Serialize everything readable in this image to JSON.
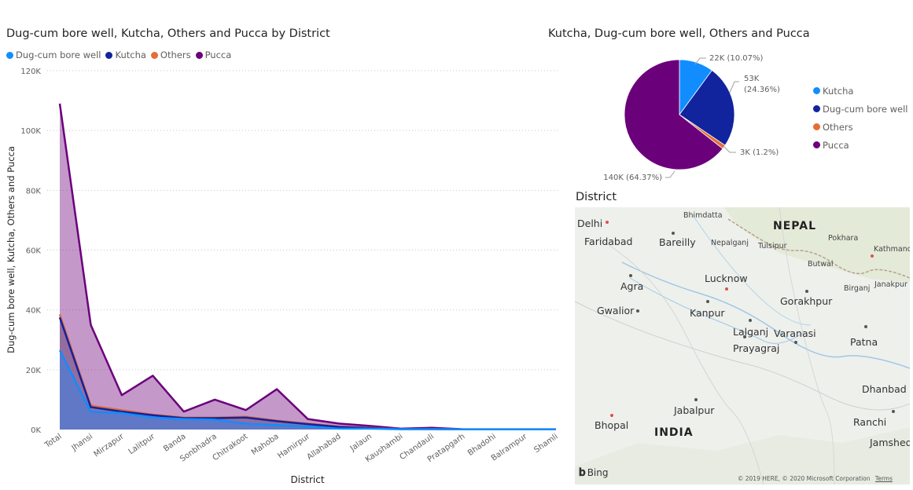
{
  "area_visual": {
    "title": "Dug-cum bore well, Kutcha, Others and Pucca by District",
    "legend": [
      {
        "label": "Dug-cum bore well",
        "color": "#118DFF"
      },
      {
        "label": "Kutcha",
        "color": "#12239E"
      },
      {
        "label": "Others",
        "color": "#E66C37"
      },
      {
        "label": "Pucca",
        "color": "#6B007B"
      }
    ]
  },
  "pie_visual": {
    "title": "Kutcha, Dug-cum bore well, Others and Pucca",
    "legend": [
      {
        "label": "Kutcha",
        "color": "#118DFF"
      },
      {
        "label": "Dug-cum bore well",
        "color": "#12239E"
      },
      {
        "label": "Others",
        "color": "#E66C37"
      },
      {
        "label": "Pucca",
        "color": "#6B007B"
      }
    ]
  },
  "map_visual": {
    "title": "District",
    "labels": {
      "delhi": "Delhi",
      "faridabad": "Faridabad",
      "bareilly": "Bareilly",
      "bhimdatta": "Bhimdatta",
      "nepal": "NEPAL",
      "pokhara": "Pokhara",
      "kathmandu": "Kathmand",
      "nepalganj": "Nepalganj",
      "tulsipur": "Tulsipur",
      "butwal": "Butwal",
      "birganj": "Birganj",
      "janakpur": "Janakpur",
      "lucknow": "Lucknow",
      "agra": "Agra",
      "gorakhpur": "Gorakhpur",
      "gwalior": "Gwalior",
      "kanpur": "Kanpur",
      "lalganj": "Lalganj",
      "varanasi": "Varanasi",
      "prayagraj": "Prayagraj",
      "patna": "Patna",
      "dhanbad": "Dhanbad",
      "jabalpur": "Jabalpur",
      "bhopal": "Bhopal",
      "india": "INDIA",
      "ranchi": "Ranchi",
      "jamshed": "Jamshed"
    },
    "bing_logo": "Bing",
    "copyright": "© 2019 HERE, © 2020 Microsoft Corporation",
    "terms": "Terms"
  },
  "chart_data": [
    {
      "type": "area",
      "title": "Dug-cum bore well, Kutcha, Others and Pucca by District",
      "xlabel": "District",
      "ylabel": "Dug-cum bore well, Kutcha, Others and Pucca",
      "ylim": [
        0,
        120000
      ],
      "yticks": [
        "0K",
        "20K",
        "40K",
        "60K",
        "80K",
        "100K",
        "120K"
      ],
      "grid": true,
      "legend_position": "top-left",
      "categories": [
        "Total",
        "Jhansi",
        "Mirzapur",
        "Lalitpur",
        "Banda",
        "Sonbhadra",
        "Chitrakoot",
        "Mahoba",
        "Hamirpur",
        "Allahabad",
        "Jalaun",
        "Kaushambi",
        "Chandauli",
        "Pratapgarh",
        "Bhadohi",
        "Balrampur",
        "Shamli"
      ],
      "series": [
        {
          "name": "Pucca",
          "color": "#6B007B",
          "values": [
            109000,
            35000,
            11500,
            18000,
            6000,
            10000,
            6500,
            13500,
            3500,
            2000,
            1200,
            300,
            600,
            100,
            100,
            100,
            100
          ]
        },
        {
          "name": "Others",
          "color": "#E66C37",
          "values": [
            38500,
            8000,
            6500,
            5000,
            4000,
            4000,
            4300,
            3000,
            2000,
            1000,
            600,
            200,
            200,
            50,
            50,
            50,
            50
          ]
        },
        {
          "name": "Kutcha",
          "color": "#12239E",
          "values": [
            37500,
            7500,
            6000,
            4800,
            3800,
            3800,
            4000,
            2800,
            1800,
            900,
            500,
            150,
            150,
            50,
            50,
            50,
            50
          ]
        },
        {
          "name": "Dug-cum bore well",
          "color": "#118DFF",
          "values": [
            26500,
            6000,
            5500,
            4000,
            3500,
            3300,
            2000,
            1500,
            1000,
            300,
            300,
            100,
            100,
            50,
            50,
            50,
            50
          ]
        }
      ]
    },
    {
      "type": "pie",
      "title": "Kutcha, Dug-cum bore well, Others and Pucca",
      "legend_position": "right",
      "slices": [
        {
          "name": "Kutcha",
          "value": 10.07,
          "label": "22K (10.07%)",
          "color": "#118DFF"
        },
        {
          "name": "Dug-cum bore well",
          "value": 24.36,
          "label_line1": "53K",
          "label_line2": "(24.36%)",
          "color": "#12239E"
        },
        {
          "name": "Others",
          "value": 1.2,
          "label": "3K (1.2%)",
          "color": "#E66C37"
        },
        {
          "name": "Pucca",
          "value": 64.37,
          "label": "140K (64.37%)",
          "color": "#6B007B"
        }
      ]
    }
  ]
}
